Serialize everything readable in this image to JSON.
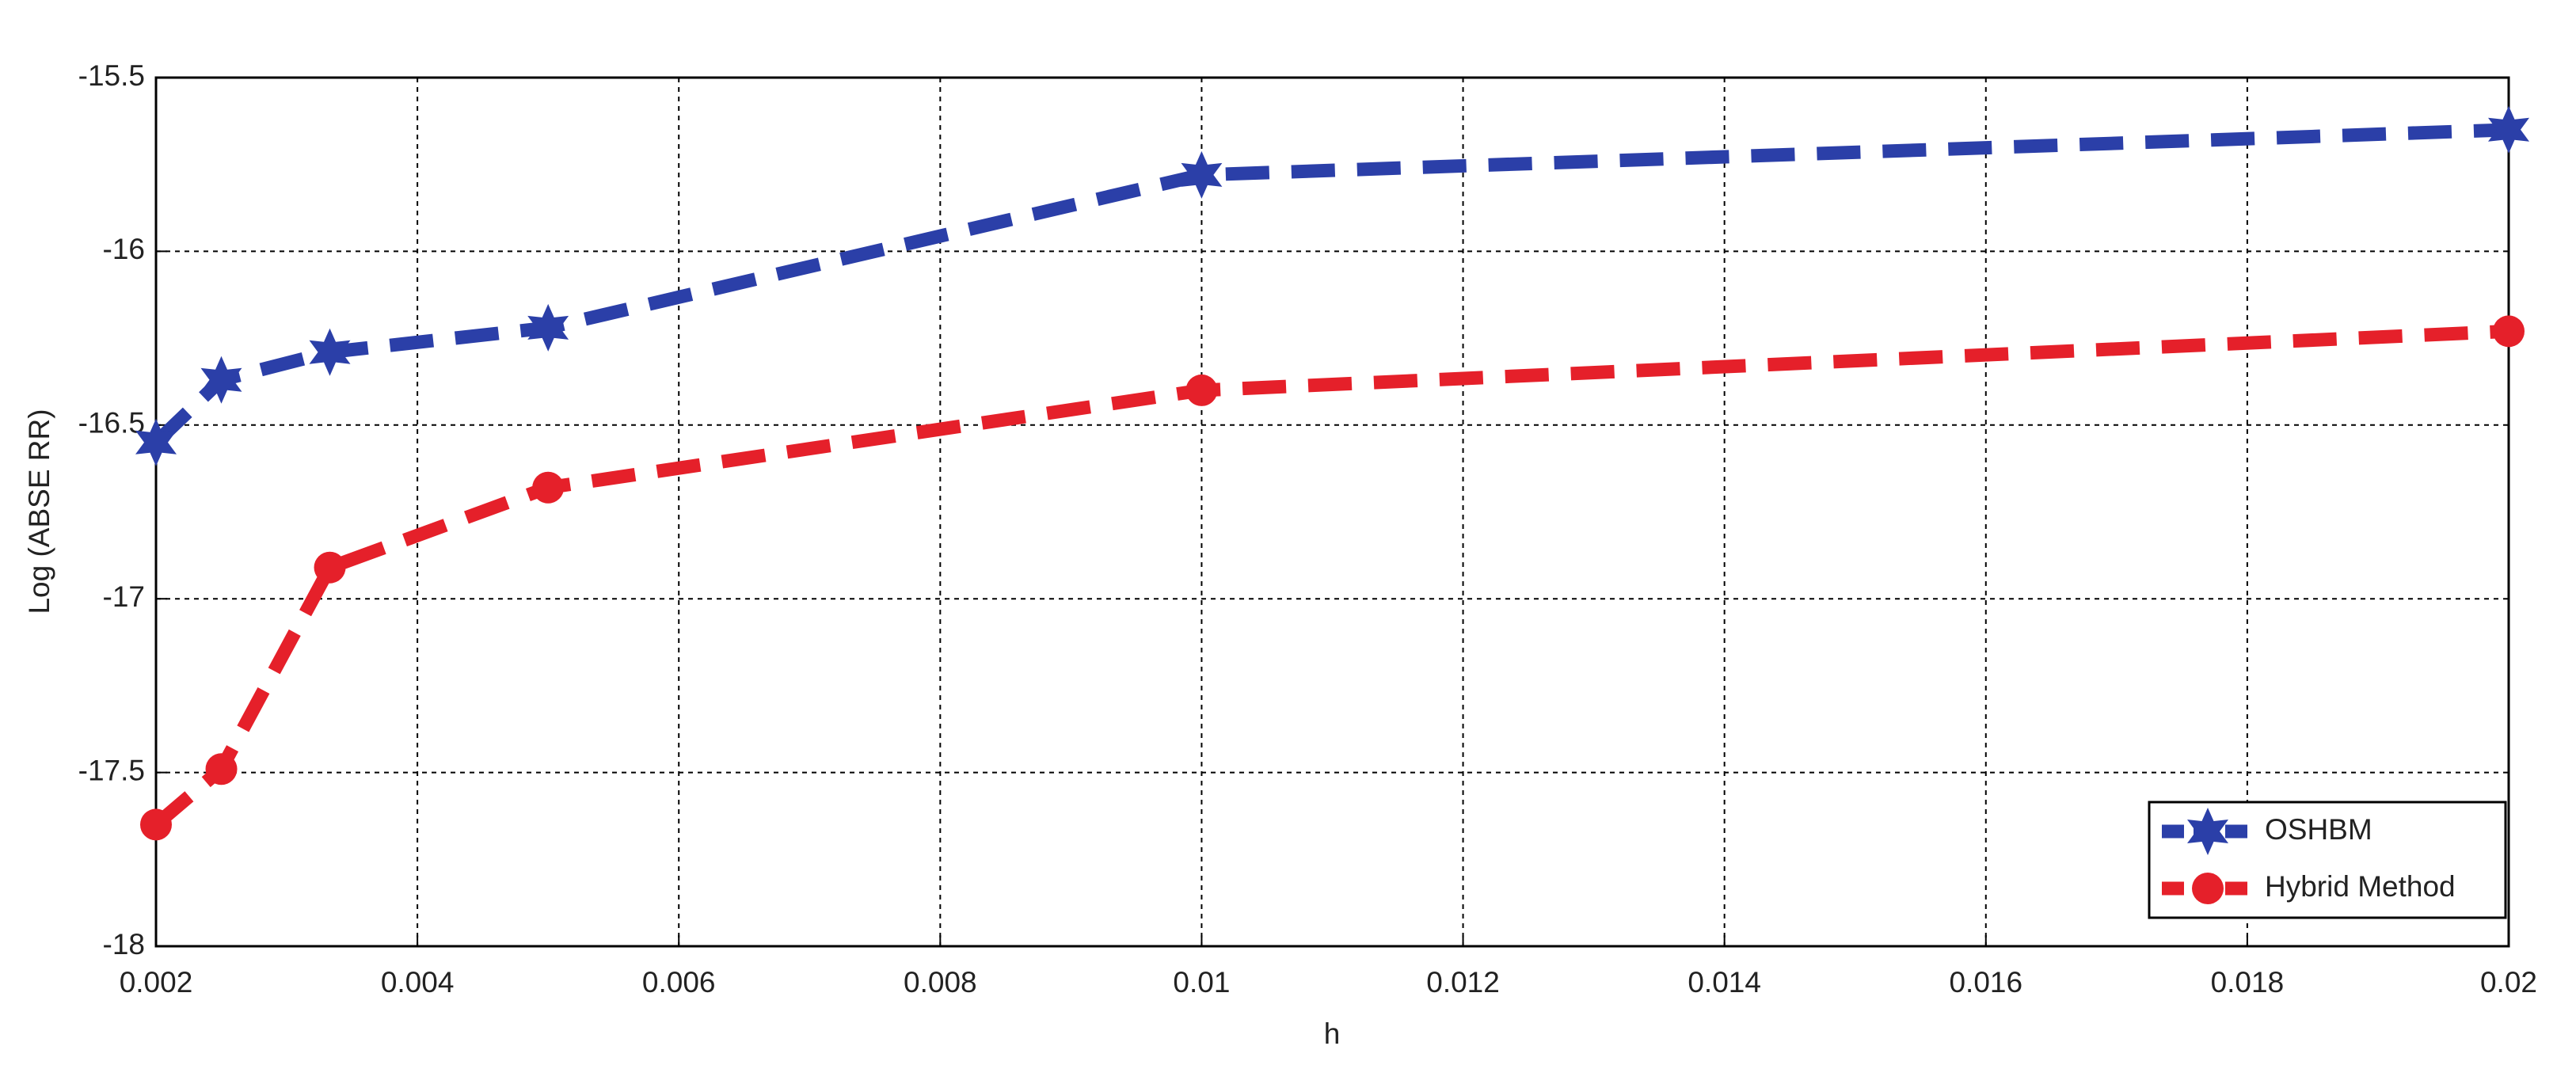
{
  "chart_data": {
    "type": "line",
    "x_label": "h",
    "y_label": "Log (ABSE RR)",
    "x": [
      0.002,
      0.0025,
      0.00333,
      0.005,
      0.01,
      0.02
    ],
    "series": [
      {
        "name": "OSHBM",
        "color": "#2b3fa8",
        "marker": "star",
        "values": [
          -16.55,
          -16.37,
          -16.29,
          -16.22,
          -15.78,
          -15.65
        ]
      },
      {
        "name": "Hybrid Method",
        "color": "#e5202a",
        "marker": "circle",
        "values": [
          -17.65,
          -17.49,
          -16.91,
          -16.68,
          -16.4,
          -16.23
        ]
      }
    ],
    "xlim": [
      0.002,
      0.02
    ],
    "xticks": [
      0.002,
      0.004,
      0.006,
      0.008,
      0.01,
      0.012,
      0.014,
      0.016,
      0.018,
      0.02
    ],
    "ylim": [
      -18,
      -15.5
    ],
    "yticks": [
      -18,
      -17.5,
      -17,
      -16.5,
      -16,
      -15.5
    ],
    "grid": true,
    "legend": "lower right"
  }
}
